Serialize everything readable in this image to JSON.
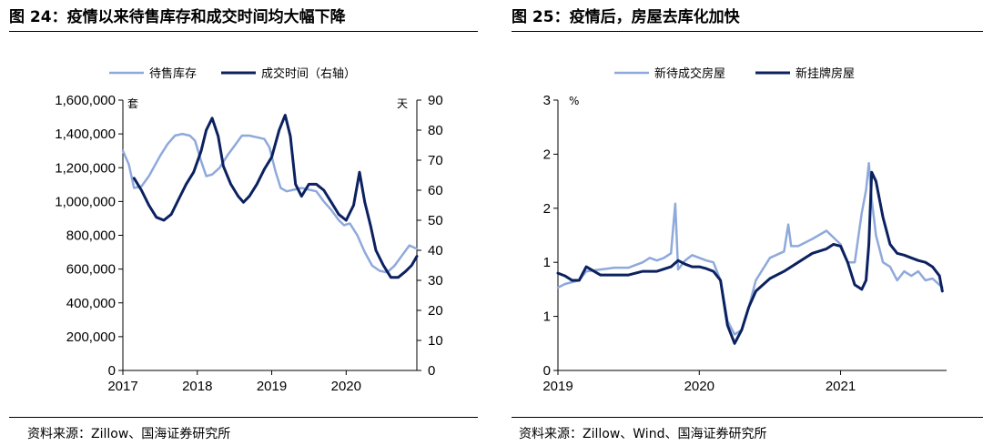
{
  "left": {
    "title": "图 24：疫情以来待售库存和成交时间均大幅下降",
    "source": "资料来源：Zillow、国海证券研究所",
    "legend": [
      "待售库存",
      "成交时间（右轴）"
    ],
    "unit_left": "套",
    "unit_right": "天"
  },
  "right": {
    "title": "图 25：疫情后，房屋去库化加快",
    "source": "资料来源：Zillow、Wind、国海证券研究所",
    "legend": [
      "新待成交房屋",
      "新挂牌房屋"
    ],
    "unit_left": "%"
  },
  "colors": {
    "light": "#8EA9DB",
    "dark": "#0B2160"
  },
  "chart_data": [
    {
      "type": "line",
      "title": "疫情以来待售库存和成交时间均大幅下降",
      "x_ticks": [
        "2017",
        "2018",
        "2019",
        "2020"
      ],
      "xlim": [
        2017.0,
        2020.95
      ],
      "y_left": {
        "lim": [
          0,
          1600000
        ],
        "ticks": [
          "0",
          "200,000",
          "400,000",
          "600,000",
          "800,000",
          "1,000,000",
          "1,200,000",
          "1,400,000",
          "1,600,000"
        ],
        "tick_values": [
          0,
          200000,
          400000,
          600000,
          800000,
          1000000,
          1200000,
          1400000,
          1600000
        ]
      },
      "y_right": {
        "lim": [
          0,
          90
        ],
        "ticks": [
          "0",
          "10",
          "20",
          "30",
          "40",
          "50",
          "60",
          "70",
          "80",
          "90"
        ],
        "tick_values": [
          0,
          10,
          20,
          30,
          40,
          50,
          60,
          70,
          80,
          90
        ]
      },
      "series": [
        {
          "name": "待售库存",
          "axis": "left",
          "x": [
            2017.0,
            2017.08,
            2017.15,
            2017.25,
            2017.35,
            2017.5,
            2017.6,
            2017.7,
            2017.8,
            2017.9,
            2017.97,
            2018.05,
            2018.12,
            2018.2,
            2018.3,
            2018.4,
            2018.5,
            2018.6,
            2018.7,
            2018.8,
            2018.9,
            2018.97,
            2019.05,
            2019.12,
            2019.2,
            2019.3,
            2019.4,
            2019.5,
            2019.6,
            2019.7,
            2019.8,
            2019.9,
            2019.97,
            2020.05,
            2020.15,
            2020.25,
            2020.35,
            2020.45,
            2020.55,
            2020.65,
            2020.75,
            2020.85,
            2020.95
          ],
          "values": [
            1300000,
            1220000,
            1080000,
            1090000,
            1150000,
            1270000,
            1340000,
            1390000,
            1400000,
            1390000,
            1360000,
            1240000,
            1150000,
            1160000,
            1200000,
            1270000,
            1330000,
            1390000,
            1390000,
            1380000,
            1370000,
            1320000,
            1180000,
            1080000,
            1060000,
            1070000,
            1080000,
            1070000,
            1060000,
            1000000,
            950000,
            890000,
            860000,
            870000,
            800000,
            700000,
            620000,
            590000,
            580000,
            620000,
            680000,
            740000,
            720000
          ]
        },
        {
          "name": "成交时间（右轴）",
          "axis": "right",
          "x": [
            2017.15,
            2017.25,
            2017.35,
            2017.45,
            2017.55,
            2017.65,
            2017.75,
            2017.85,
            2017.95,
            2018.05,
            2018.12,
            2018.2,
            2018.28,
            2018.35,
            2018.45,
            2018.55,
            2018.62,
            2018.7,
            2018.8,
            2018.9,
            2019.0,
            2019.1,
            2019.18,
            2019.25,
            2019.32,
            2019.4,
            2019.5,
            2019.6,
            2019.7,
            2019.8,
            2019.9,
            2020.0,
            2020.1,
            2020.18,
            2020.25,
            2020.33,
            2020.4,
            2020.5,
            2020.6,
            2020.7,
            2020.8,
            2020.88,
            2020.95
          ],
          "values": [
            64,
            60,
            55,
            51,
            50,
            52,
            57,
            62,
            66,
            73,
            80,
            84,
            78,
            68,
            62,
            58,
            56,
            58,
            62,
            67,
            71,
            80,
            85,
            78,
            62,
            58,
            62,
            62,
            60,
            56,
            52,
            50,
            55,
            66,
            56,
            48,
            40,
            35,
            31,
            31,
            33,
            35,
            38
          ]
        }
      ]
    },
    {
      "type": "line",
      "title": "疫情后，房屋去库化加快",
      "x_ticks": [
        "2019",
        "2020",
        "2021"
      ],
      "xlim": [
        2019.0,
        2021.75
      ],
      "y_left": {
        "lim": [
          0,
          3
        ],
        "ticks": [
          "0",
          "1",
          "1",
          "2",
          "2",
          "3"
        ],
        "tick_values": [
          0,
          0.6,
          1.2,
          1.8,
          2.4,
          3.0
        ]
      },
      "series": [
        {
          "name": "新待成交房屋",
          "axis": "left",
          "x": [
            2019.0,
            2019.05,
            2019.1,
            2019.15,
            2019.2,
            2019.3,
            2019.4,
            2019.5,
            2019.6,
            2019.65,
            2019.7,
            2019.75,
            2019.8,
            2019.83,
            2019.85,
            2019.9,
            2019.95,
            2020.0,
            2020.05,
            2020.1,
            2020.15,
            2020.2,
            2020.25,
            2020.3,
            2020.35,
            2020.4,
            2020.5,
            2020.6,
            2020.63,
            2020.65,
            2020.7,
            2020.8,
            2020.9,
            2021.0,
            2021.05,
            2021.1,
            2021.15,
            2021.18,
            2021.2,
            2021.22,
            2021.25,
            2021.3,
            2021.35,
            2021.4,
            2021.45,
            2021.5,
            2021.55,
            2021.6,
            2021.65,
            2021.7,
            2021.72
          ],
          "values": [
            0.92,
            0.96,
            0.98,
            1.0,
            1.1,
            1.12,
            1.14,
            1.14,
            1.2,
            1.25,
            1.22,
            1.25,
            1.3,
            1.85,
            1.12,
            1.22,
            1.28,
            1.25,
            1.22,
            1.2,
            1.0,
            0.55,
            0.4,
            0.45,
            0.7,
            1.0,
            1.25,
            1.32,
            1.62,
            1.38,
            1.38,
            1.46,
            1.55,
            1.4,
            1.2,
            1.2,
            1.75,
            2.0,
            2.3,
            1.9,
            1.5,
            1.2,
            1.15,
            1.0,
            1.1,
            1.05,
            1.1,
            1.0,
            1.02,
            0.95,
            0.92
          ]
        },
        {
          "name": "新挂牌房屋",
          "axis": "left",
          "x": [
            2019.0,
            2019.05,
            2019.1,
            2019.15,
            2019.2,
            2019.3,
            2019.4,
            2019.5,
            2019.6,
            2019.7,
            2019.8,
            2019.85,
            2019.9,
            2019.95,
            2020.0,
            2020.05,
            2020.1,
            2020.15,
            2020.2,
            2020.25,
            2020.3,
            2020.35,
            2020.4,
            2020.5,
            2020.6,
            2020.7,
            2020.8,
            2020.9,
            2020.95,
            2021.0,
            2021.05,
            2021.1,
            2021.15,
            2021.18,
            2021.2,
            2021.22,
            2021.25,
            2021.3,
            2021.35,
            2021.4,
            2021.45,
            2021.5,
            2021.55,
            2021.6,
            2021.65,
            2021.7,
            2021.72
          ],
          "values": [
            1.08,
            1.05,
            1.0,
            1.0,
            1.15,
            1.06,
            1.06,
            1.06,
            1.1,
            1.1,
            1.15,
            1.22,
            1.18,
            1.15,
            1.15,
            1.13,
            1.1,
            1.0,
            0.5,
            0.3,
            0.45,
            0.7,
            0.88,
            1.02,
            1.1,
            1.2,
            1.3,
            1.35,
            1.4,
            1.38,
            1.2,
            0.95,
            0.9,
            1.0,
            1.4,
            2.2,
            2.1,
            1.7,
            1.4,
            1.3,
            1.28,
            1.25,
            1.22,
            1.2,
            1.15,
            1.05,
            0.88
          ]
        }
      ]
    }
  ]
}
